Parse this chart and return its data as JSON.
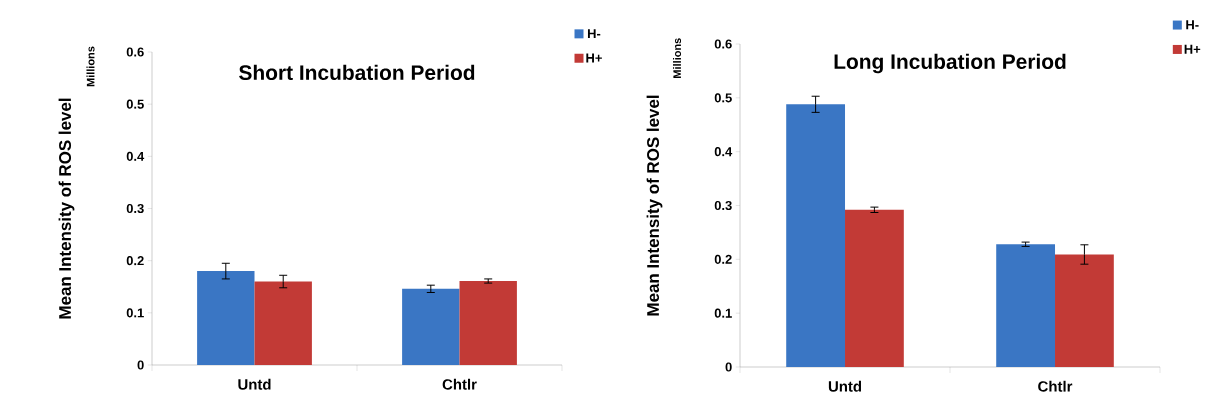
{
  "chart_data": [
    {
      "type": "bar",
      "title": "Short Incubation Period",
      "ylabel": "Mean Intensity of ROS level",
      "annotations": [
        "Millions"
      ],
      "categories": [
        "Untd",
        "Chtlr"
      ],
      "ylim": [
        0,
        0.6
      ],
      "yticks": [
        0,
        0.1,
        0.2,
        0.3,
        0.4,
        0.5,
        0.6
      ],
      "legend": "top right",
      "series": [
        {
          "name": "H-",
          "color": "#3a76c4",
          "values": [
            0.18,
            0.146
          ],
          "errors": [
            0.015,
            0.007
          ]
        },
        {
          "name": "H+",
          "color": "#c23a36",
          "values": [
            0.16,
            0.161
          ],
          "errors": [
            0.012,
            0.004
          ]
        }
      ]
    },
    {
      "type": "bar",
      "title": "Long Incubation Period",
      "ylabel": "Mean Intensity of ROS level",
      "annotations": [
        "Millions"
      ],
      "categories": [
        "Untd",
        "Chtlr"
      ],
      "ylim": [
        0,
        0.6
      ],
      "yticks": [
        0,
        0.1,
        0.2,
        0.3,
        0.4,
        0.5,
        0.6
      ],
      "legend": "top right",
      "series": [
        {
          "name": "H-",
          "color": "#3a76c4",
          "values": [
            0.488,
            0.228
          ],
          "errors": [
            0.015,
            0.004
          ]
        },
        {
          "name": "H+",
          "color": "#c23a36",
          "values": [
            0.292,
            0.209
          ],
          "errors": [
            0.005,
            0.018
          ]
        }
      ]
    }
  ]
}
